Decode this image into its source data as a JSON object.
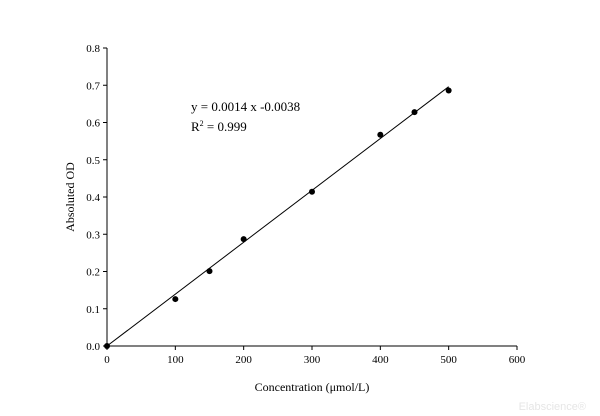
{
  "chart_data": {
    "type": "scatter",
    "xlabel": "Concentration (μmol/L)",
    "ylabel": "Absoluted OD",
    "xlim": [
      0,
      600
    ],
    "ylim": [
      0,
      0.8
    ],
    "xticks": [
      0,
      100,
      200,
      300,
      400,
      500,
      600
    ],
    "yticks": [
      0.0,
      0.1,
      0.2,
      0.3,
      0.4,
      0.5,
      0.6,
      0.7,
      0.8
    ],
    "xtick_labels": [
      "0",
      "100",
      "200",
      "300",
      "400",
      "500",
      "600"
    ],
    "ytick_labels": [
      "0.0",
      "0.1",
      "0.2",
      "0.3",
      "0.4",
      "0.5",
      "0.6",
      "0.7",
      "0.8"
    ],
    "points": [
      {
        "x": 0,
        "y": 0.0
      },
      {
        "x": 100,
        "y": 0.126
      },
      {
        "x": 150,
        "y": 0.201
      },
      {
        "x": 200,
        "y": 0.287
      },
      {
        "x": 300,
        "y": 0.414
      },
      {
        "x": 400,
        "y": 0.567
      },
      {
        "x": 450,
        "y": 0.628
      },
      {
        "x": 500,
        "y": 0.686
      }
    ],
    "fit_line": {
      "slope": 0.0014,
      "intercept": -0.0038,
      "x_start": 0,
      "x_end": 500
    },
    "equation": "y = 0.0014 x -0.0038",
    "r2_prefix": "R",
    "r2_sup": "2",
    "r2_value": " = 0.999",
    "grid": false,
    "legend": "none"
  },
  "watermark": "Elabscience®"
}
